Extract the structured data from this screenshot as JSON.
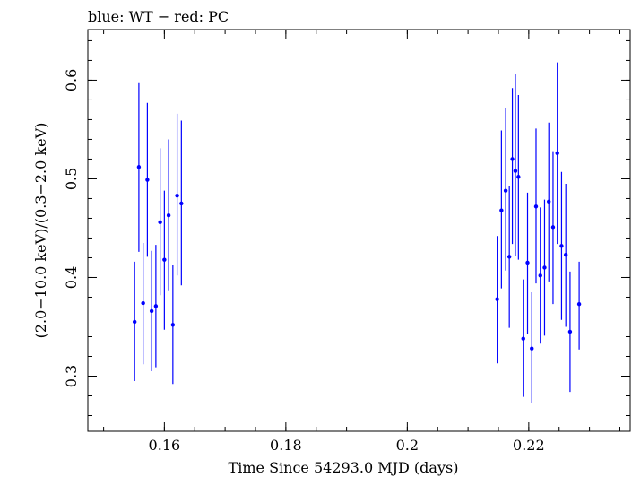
{
  "chart_data": {
    "type": "scatter",
    "title": "blue: WT − red: PC",
    "xlabel": "Time Since 54293.0 MJD (days)",
    "ylabel": "(2.0−10.0 keV)/(0.3−2.0 keV)",
    "xlim": [
      0.1474,
      0.2367
    ],
    "ylim": [
      0.2441,
      0.6513
    ],
    "x_ticks": [
      0.16,
      0.18,
      0.2,
      0.22
    ],
    "x_tick_labels": [
      "0.16",
      "0.18",
      "0.2",
      "0.22"
    ],
    "y_ticks": [
      0.3,
      0.4,
      0.5,
      0.6
    ],
    "y_tick_labels": [
      "0.3",
      "0.4",
      "0.5",
      "0.6"
    ],
    "x_minor_step": 0.005,
    "y_minor_step": 0.02,
    "grid": false,
    "series": [
      {
        "color": "#0000ff",
        "points": [
          {
            "x": 0.1551,
            "y": 0.355,
            "ylo": 0.295,
            "yhi": 0.416
          },
          {
            "x": 0.1558,
            "y": 0.512,
            "ylo": 0.426,
            "yhi": 0.597
          },
          {
            "x": 0.1565,
            "y": 0.374,
            "ylo": 0.312,
            "yhi": 0.435
          },
          {
            "x": 0.1572,
            "y": 0.499,
            "ylo": 0.421,
            "yhi": 0.577
          },
          {
            "x": 0.1579,
            "y": 0.366,
            "ylo": 0.305,
            "yhi": 0.427
          },
          {
            "x": 0.1586,
            "y": 0.371,
            "ylo": 0.309,
            "yhi": 0.433
          },
          {
            "x": 0.1593,
            "y": 0.456,
            "ylo": 0.382,
            "yhi": 0.531
          },
          {
            "x": 0.16,
            "y": 0.418,
            "ylo": 0.347,
            "yhi": 0.488
          },
          {
            "x": 0.1607,
            "y": 0.463,
            "ylo": 0.387,
            "yhi": 0.54
          },
          {
            "x": 0.1614,
            "y": 0.352,
            "ylo": 0.292,
            "yhi": 0.413
          },
          {
            "x": 0.1621,
            "y": 0.483,
            "ylo": 0.402,
            "yhi": 0.566
          },
          {
            "x": 0.1628,
            "y": 0.475,
            "ylo": 0.392,
            "yhi": 0.559
          },
          {
            "x": 0.2148,
            "y": 0.378,
            "ylo": 0.313,
            "yhi": 0.442
          },
          {
            "x": 0.2155,
            "y": 0.468,
            "ylo": 0.389,
            "yhi": 0.549
          },
          {
            "x": 0.2162,
            "y": 0.488,
            "ylo": 0.407,
            "yhi": 0.572
          },
          {
            "x": 0.2168,
            "y": 0.421,
            "ylo": 0.349,
            "yhi": 0.493
          },
          {
            "x": 0.2173,
            "y": 0.52,
            "ylo": 0.434,
            "yhi": 0.592
          },
          {
            "x": 0.2178,
            "y": 0.508,
            "ylo": 0.422,
            "yhi": 0.606
          },
          {
            "x": 0.2183,
            "y": 0.502,
            "ylo": 0.418,
            "yhi": 0.585
          },
          {
            "x": 0.2191,
            "y": 0.338,
            "ylo": 0.279,
            "yhi": 0.398
          },
          {
            "x": 0.2198,
            "y": 0.415,
            "ylo": 0.343,
            "yhi": 0.486
          },
          {
            "x": 0.2205,
            "y": 0.328,
            "ylo": 0.273,
            "yhi": 0.385
          },
          {
            "x": 0.2212,
            "y": 0.472,
            "ylo": 0.394,
            "yhi": 0.551
          },
          {
            "x": 0.2219,
            "y": 0.402,
            "ylo": 0.333,
            "yhi": 0.471
          },
          {
            "x": 0.2226,
            "y": 0.41,
            "ylo": 0.341,
            "yhi": 0.479
          },
          {
            "x": 0.2233,
            "y": 0.477,
            "ylo": 0.396,
            "yhi": 0.557
          },
          {
            "x": 0.224,
            "y": 0.451,
            "ylo": 0.373,
            "yhi": 0.528
          },
          {
            "x": 0.2247,
            "y": 0.526,
            "ylo": 0.434,
            "yhi": 0.618
          },
          {
            "x": 0.2254,
            "y": 0.432,
            "ylo": 0.357,
            "yhi": 0.507
          },
          {
            "x": 0.2261,
            "y": 0.423,
            "ylo": 0.35,
            "yhi": 0.495
          },
          {
            "x": 0.2268,
            "y": 0.345,
            "ylo": 0.284,
            "yhi": 0.406
          },
          {
            "x": 0.2283,
            "y": 0.373,
            "ylo": 0.327,
            "yhi": 0.416
          }
        ]
      }
    ]
  }
}
